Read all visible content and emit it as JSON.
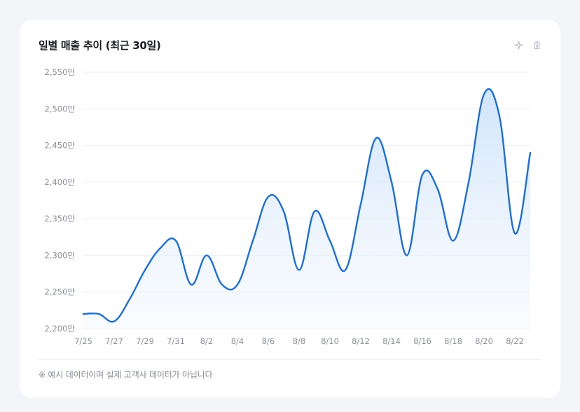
{
  "card": {
    "title": "일별 매출 추이 (최근 30일)",
    "footnote": "※ 예시 데이터이며 실제 고객사 데이터가 아닙니다"
  },
  "toolbar": {
    "sparkle_icon": "sparkle-icon",
    "trash_icon": "trash-icon"
  },
  "colors": {
    "line": "#1a6fde",
    "fill_top": "#cfe3fb",
    "grid": "#eceff3",
    "tick_text": "#8a909a"
  },
  "chart_data": {
    "type": "area",
    "title": "일별 매출 추이 (최근 30일)",
    "xlabel": "",
    "ylabel": "",
    "ylim": [
      2200,
      2550
    ],
    "y_ticks": [
      2200,
      2250,
      2300,
      2350,
      2400,
      2450,
      2500,
      2550
    ],
    "y_tick_labels": [
      "2,200만",
      "2,250만",
      "2,300만",
      "2,350만",
      "2,400만",
      "2,450만",
      "2,500만",
      "2,550만"
    ],
    "x_tick_labels": [
      "7/25",
      "7/27",
      "7/29",
      "7/31",
      "8/2",
      "8/4",
      "8/6",
      "8/8",
      "8/10",
      "8/12",
      "8/14",
      "8/16",
      "8/18",
      "8/20",
      "8/22"
    ],
    "grid": true,
    "legend": "none",
    "series": [
      {
        "x": [
          "7/25",
          "7/26",
          "7/27",
          "7/28",
          "7/29",
          "7/30",
          "7/31",
          "8/1",
          "8/2",
          "8/3",
          "8/4",
          "8/5",
          "8/6",
          "8/7",
          "8/8",
          "8/9",
          "8/10",
          "8/11",
          "8/12",
          "8/13",
          "8/14",
          "8/15",
          "8/16",
          "8/17",
          "8/18",
          "8/19",
          "8/20",
          "8/21",
          "8/22",
          "8/23"
        ],
        "values": [
          2220,
          2220,
          2210,
          2240,
          2280,
          2310,
          2320,
          2260,
          2300,
          2260,
          2260,
          2320,
          2380,
          2360,
          2280,
          2360,
          2320,
          2280,
          2370,
          2460,
          2400,
          2300,
          2410,
          2390,
          2320,
          2400,
          2520,
          2490,
          2330,
          2440
        ]
      }
    ]
  }
}
